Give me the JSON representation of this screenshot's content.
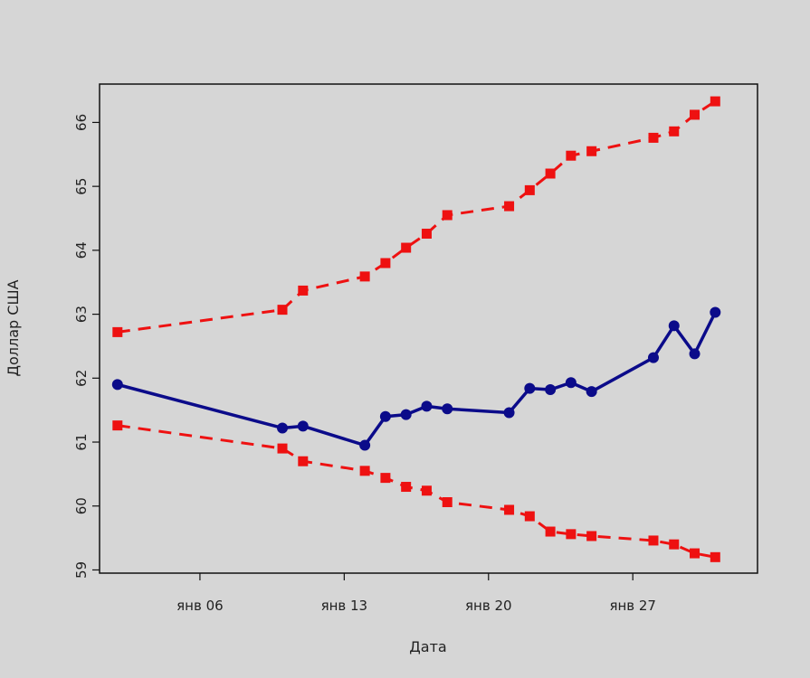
{
  "chart_data": {
    "type": "line",
    "title": "",
    "xlabel": "Дата",
    "ylabel": "Доллар США",
    "x_tick_labels": [
      "янв 06",
      "янв 13",
      "янв 20",
      "янв 27"
    ],
    "x_tick_days": [
      6,
      13,
      20,
      27
    ],
    "y_ticks": [
      59,
      60,
      61,
      62,
      63,
      64,
      65,
      66
    ],
    "xlim": [
      1.13,
      33.05
    ],
    "ylim": [
      58.95,
      66.6
    ],
    "grid": false,
    "legend": "none",
    "x_days": [
      2,
      10,
      11,
      14,
      15,
      16,
      17,
      18,
      21,
      22,
      23,
      24,
      25,
      28,
      29,
      30,
      31
    ],
    "series": [
      {
        "values": [
          61.9,
          61.22,
          61.25,
          60.95,
          61.4,
          61.43,
          61.56,
          61.52,
          61.46,
          61.84,
          61.82,
          61.93,
          61.79,
          62.32,
          62.82,
          62.38,
          63.03
        ],
        "color": "#0b0b8a",
        "style": "solid",
        "marker": "circle"
      },
      {
        "values": [
          62.72,
          63.07,
          63.37,
          63.59,
          63.8,
          64.04,
          64.26,
          64.55,
          64.69,
          64.94,
          65.2,
          65.48,
          65.55,
          65.76,
          65.86,
          66.12,
          66.33
        ],
        "color": "#ee1111",
        "style": "dashed",
        "marker": "square"
      },
      {
        "values": [
          61.26,
          60.9,
          60.7,
          60.55,
          60.44,
          60.3,
          60.24,
          60.06,
          59.94,
          59.84,
          59.6,
          59.56,
          59.53,
          59.46,
          59.4,
          59.26,
          59.2
        ],
        "color": "#ee1111",
        "style": "dashed",
        "marker": "square"
      }
    ]
  }
}
